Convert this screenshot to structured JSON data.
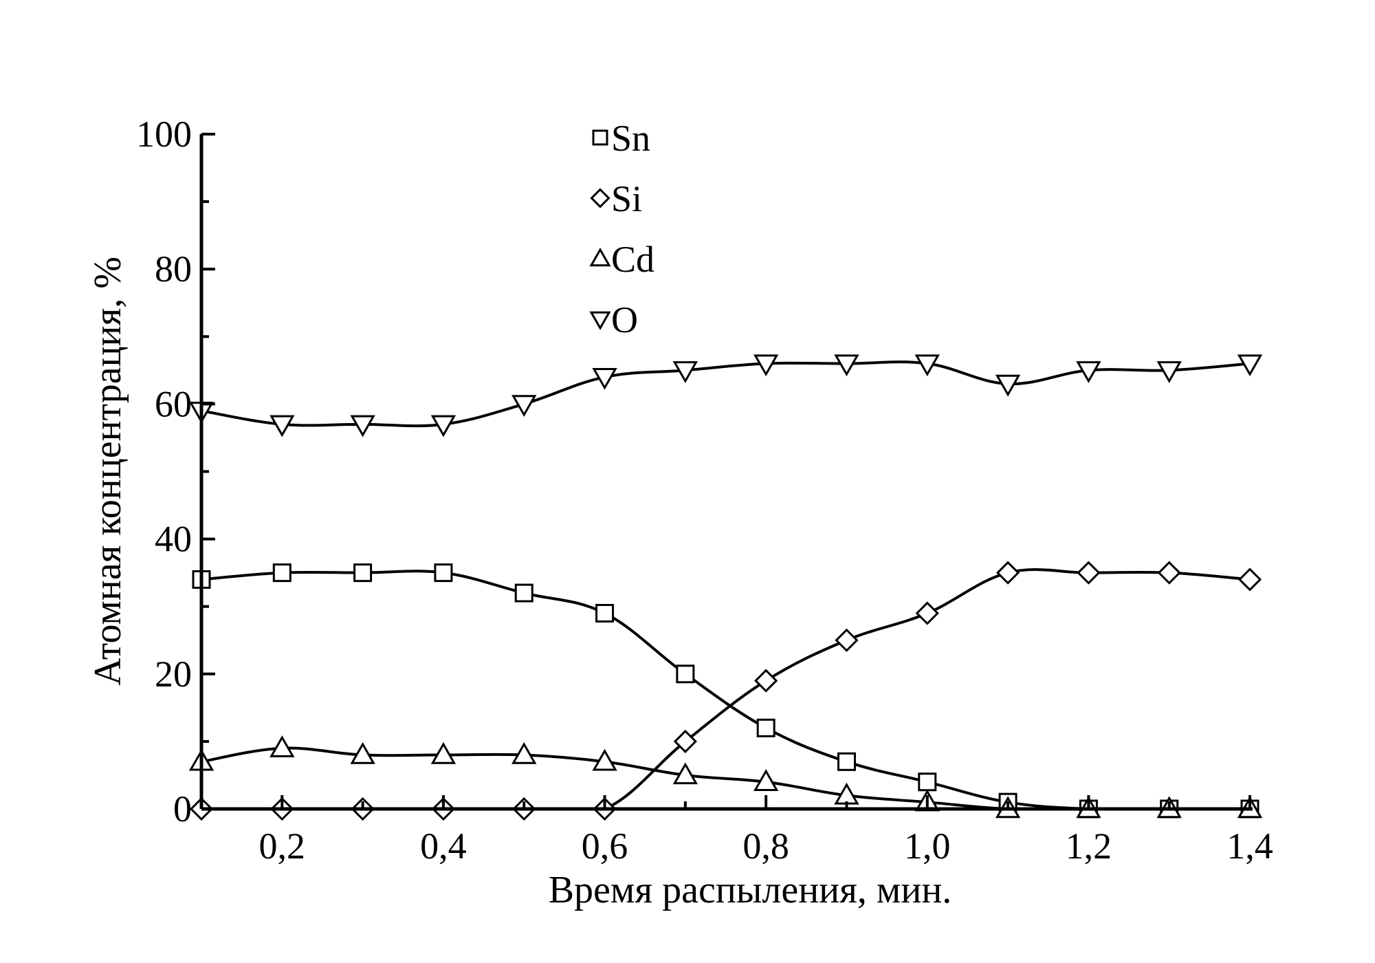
{
  "chart_data": {
    "type": "line",
    "xlabel": "Время распыления, мин.",
    "ylabel": "Атомная концентрация, %",
    "xlim": [
      0.1,
      1.4
    ],
    "ylim": [
      0,
      100
    ],
    "x_ticks": [
      {
        "value": 0.2,
        "label": "0,2"
      },
      {
        "value": 0.4,
        "label": "0,4"
      },
      {
        "value": 0.6,
        "label": "0,6"
      },
      {
        "value": 0.8,
        "label": "0,8"
      },
      {
        "value": 1.0,
        "label": "1,0"
      },
      {
        "value": 1.2,
        "label": "1,2"
      },
      {
        "value": 1.4,
        "label": "1,4"
      }
    ],
    "y_ticks": [
      {
        "value": 0,
        "label": "0"
      },
      {
        "value": 20,
        "label": "20"
      },
      {
        "value": 40,
        "label": "40"
      },
      {
        "value": 60,
        "label": "60"
      },
      {
        "value": 80,
        "label": "80"
      },
      {
        "value": 100,
        "label": "100"
      }
    ],
    "grid": false,
    "legend_position": "top-center",
    "x": [
      0.1,
      0.2,
      0.3,
      0.4,
      0.5,
      0.6,
      0.7,
      0.8,
      0.9,
      1.0,
      1.1,
      1.2,
      1.3,
      1.4
    ],
    "series": [
      {
        "name": "Sn",
        "marker": "square",
        "values": [
          34,
          35,
          35,
          35,
          32,
          29,
          20,
          12,
          7,
          4,
          1,
          0,
          0,
          0
        ]
      },
      {
        "name": "Si",
        "marker": "diamond",
        "values": [
          0,
          0,
          0,
          0,
          0,
          0,
          10,
          19,
          25,
          29,
          35,
          35,
          35,
          34
        ]
      },
      {
        "name": "Cd",
        "marker": "triangle-up",
        "values": [
          7,
          9,
          8,
          8,
          8,
          7,
          5,
          4,
          2,
          1,
          0,
          0,
          0,
          0
        ]
      },
      {
        "name": "O",
        "marker": "triangle-down",
        "values": [
          59,
          57,
          57,
          57,
          60,
          64,
          65,
          66,
          66,
          66,
          63,
          65,
          65,
          66
        ]
      }
    ],
    "colors": {
      "line": "#000000",
      "marker_fill": "#ffffff",
      "background": "#ffffff"
    }
  }
}
